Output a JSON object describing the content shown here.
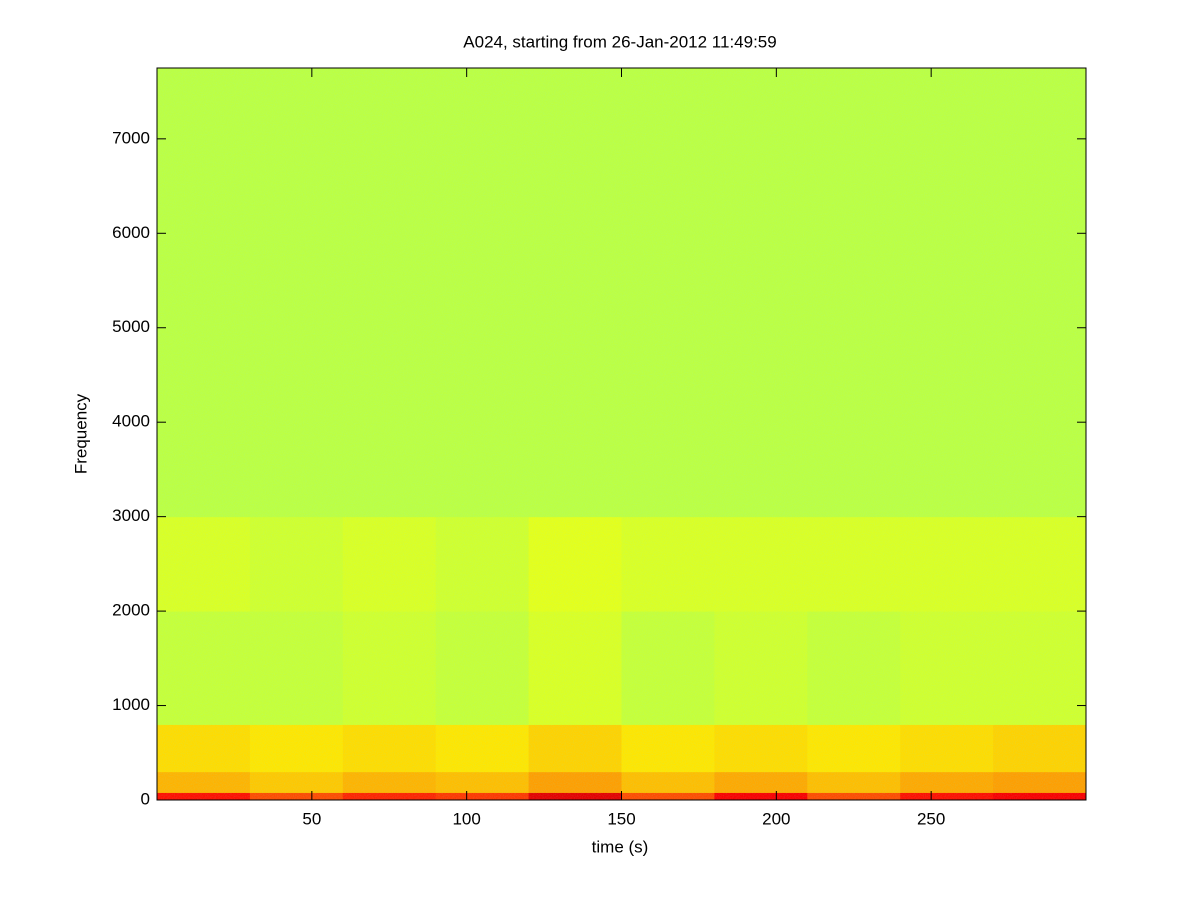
{
  "chart_data": {
    "type": "spectrogram",
    "title": "A024, starting from 26-Jan-2012 11:49:59",
    "x_label": "time (s)",
    "y_label": "Frequency",
    "xlim": [
      0,
      300
    ],
    "ylim": [
      0,
      7750
    ],
    "xticks": [
      50,
      100,
      150,
      200,
      250
    ],
    "yticks": [
      0,
      1000,
      2000,
      3000,
      4000,
      5000,
      6000,
      7000
    ],
    "colormap": "jet",
    "clim": [
      0,
      1
    ],
    "time_edges": [
      0,
      30,
      60,
      90,
      120,
      150,
      180,
      210,
      240,
      270,
      300
    ],
    "frequency_edges": [
      0,
      80,
      300,
      800,
      2000,
      3000,
      7750
    ],
    "values": [
      [
        0.86,
        0.8,
        0.84,
        0.82,
        0.9,
        0.8,
        0.88,
        0.8,
        0.86,
        0.88
      ],
      [
        0.7,
        0.68,
        0.7,
        0.69,
        0.72,
        0.69,
        0.71,
        0.69,
        0.71,
        0.72
      ],
      [
        0.66,
        0.65,
        0.66,
        0.65,
        0.67,
        0.65,
        0.66,
        0.65,
        0.66,
        0.67
      ],
      [
        0.57,
        0.57,
        0.58,
        0.57,
        0.59,
        0.57,
        0.58,
        0.57,
        0.58,
        0.58
      ],
      [
        0.59,
        0.58,
        0.59,
        0.58,
        0.6,
        0.59,
        0.59,
        0.59,
        0.59,
        0.59
      ],
      [
        0.56,
        0.56,
        0.56,
        0.56,
        0.56,
        0.56,
        0.56,
        0.56,
        0.56,
        0.56
      ]
    ]
  }
}
